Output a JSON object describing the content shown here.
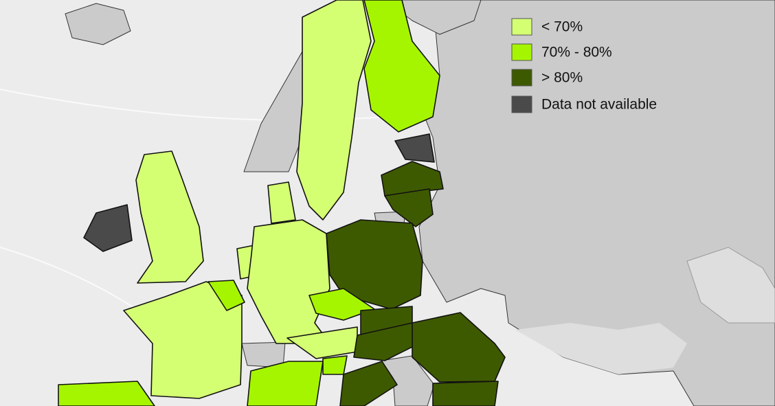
{
  "legend": {
    "items": [
      {
        "label": "< 70%",
        "color": "#d5ff73"
      },
      {
        "label": "70% - 80%",
        "color": "#a6f500"
      },
      {
        "label": "> 80%",
        "color": "#3e5a00"
      },
      {
        "label": "Data not available",
        "color": "#4a4a4a"
      }
    ]
  }
}
